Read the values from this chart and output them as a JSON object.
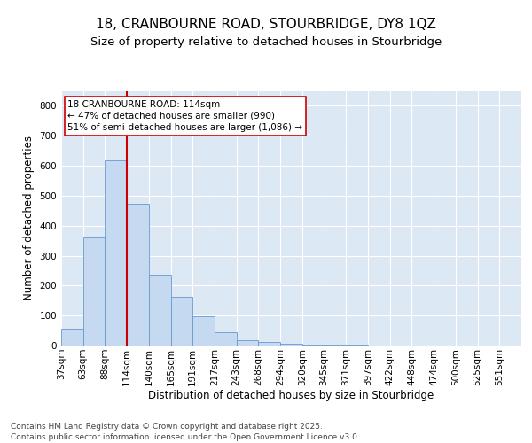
{
  "title_line1": "18, CRANBOURNE ROAD, STOURBRIDGE, DY8 1QZ",
  "title_line2": "Size of property relative to detached houses in Stourbridge",
  "xlabel": "Distribution of detached houses by size in Stourbridge",
  "ylabel": "Number of detached properties",
  "categories": [
    "37sqm",
    "63sqm",
    "88sqm",
    "114sqm",
    "140sqm",
    "165sqm",
    "191sqm",
    "217sqm",
    "243sqm",
    "268sqm",
    "294sqm",
    "320sqm",
    "345sqm",
    "371sqm",
    "397sqm",
    "422sqm",
    "448sqm",
    "474sqm",
    "500sqm",
    "525sqm",
    "551sqm"
  ],
  "values": [
    57,
    360,
    617,
    474,
    238,
    163,
    98,
    44,
    18,
    13,
    7,
    4,
    2,
    2,
    1,
    1,
    1,
    0,
    0,
    0
  ],
  "bar_color": "#c5d9f0",
  "bar_edge_color": "#6699cc",
  "background_color": "#dde8f5",
  "grid_color": "#ffffff",
  "vline_x_idx": 3,
  "vline_color": "#cc0000",
  "annotation_text": "18 CRANBOURNE ROAD: 114sqm\n← 47% of detached houses are smaller (990)\n51% of semi-detached houses are larger (1,086) →",
  "annotation_box_color": "#ffffff",
  "annotation_box_edge": "#cc0000",
  "ylim": [
    0,
    850
  ],
  "yticks": [
    0,
    100,
    200,
    300,
    400,
    500,
    600,
    700,
    800
  ],
  "footer_line1": "Contains HM Land Registry data © Crown copyright and database right 2025.",
  "footer_line2": "Contains public sector information licensed under the Open Government Licence v3.0.",
  "title_fontsize": 11,
  "subtitle_fontsize": 9.5,
  "axis_label_fontsize": 8.5,
  "tick_fontsize": 7.5,
  "annotation_fontsize": 7.5,
  "footer_fontsize": 6.5,
  "fig_bg": "#ffffff"
}
